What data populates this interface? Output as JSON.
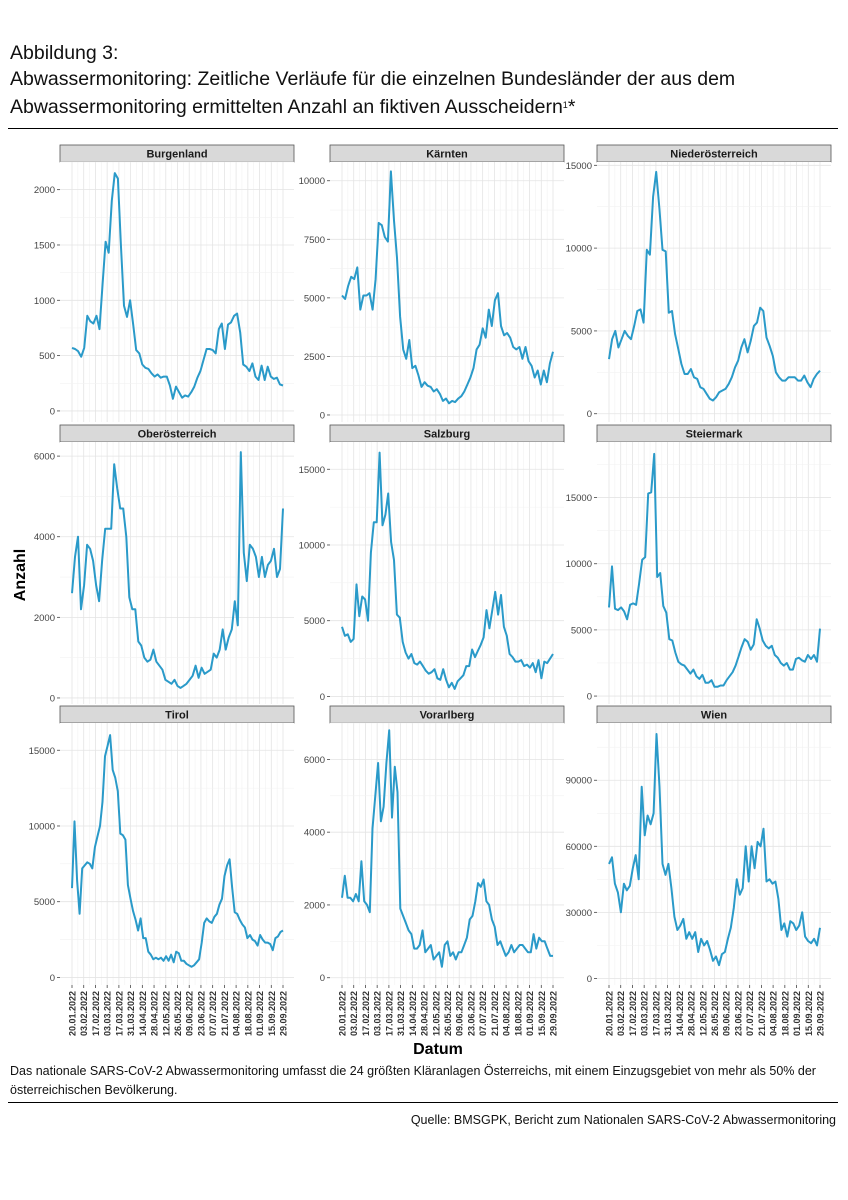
{
  "header": {
    "figure_label": "Abbildung 3:",
    "title_line1": "Abwassermonitoring: Zeitliche Verläufe für die einzelnen Bundesländer der aus dem",
    "title_line2": "Abwassermonitoring ermittelten Anzahl an fiktiven Ausscheidern",
    "title_sup": "1",
    "title_suffix": "*"
  },
  "footnote": "Das nationale SARS-CoV-2 Abwassermonitoring umfasst die 24 größten Kläranlagen Österreichs, mit einem Einzugsgebiet von mehr als 50% der österreichischen Bevölkerung.",
  "source": "Quelle: BMSGPK, Bericht zum Nationalen SARS-CoV-2 Abwassermonitoring",
  "colors": {
    "line": "#2a9ac9",
    "strip": "#d9d9d9",
    "grid_major": "#e4e4e4",
    "grid_minor": "#f2f2f2"
  },
  "chart_data": {
    "type": "line",
    "facet": "small-multiples",
    "xlabel": "Datum",
    "ylabel": "Anzahl",
    "x_tick_labels": [
      "20.01.2022",
      "03.02.2022",
      "17.02.2022",
      "03.03.2022",
      "17.03.2022",
      "31.03.2022",
      "14.04.2022",
      "28.04.2022",
      "12.05.2022",
      "26.05.2022",
      "09.06.2022",
      "23.06.2022",
      "07.07.2022",
      "21.07.2022",
      "04.08.2022",
      "18.08.2022",
      "01.09.2022",
      "15.09.2022",
      "29.09.2022"
    ],
    "x_range": [
      "20.01.2022",
      "29.09.2022"
    ],
    "grid": true,
    "panels": [
      {
        "name": "Burgenland",
        "ylim": [
          -100,
          2250
        ],
        "yticks": [
          0,
          500,
          1000,
          1500,
          2000
        ],
        "values": [
          570,
          560,
          540,
          490,
          570,
          860,
          810,
          790,
          860,
          740,
          1150,
          1530,
          1430,
          1900,
          2150,
          2100,
          1500,
          950,
          850,
          1000,
          780,
          550,
          520,
          420,
          390,
          380,
          340,
          310,
          330,
          300,
          310,
          310,
          230,
          110,
          220,
          170,
          120,
          140,
          130,
          170,
          220,
          300,
          360,
          460,
          560,
          560,
          550,
          520,
          740,
          790,
          560,
          780,
          800,
          860,
          880,
          710,
          420,
          400,
          360,
          430,
          310,
          280,
          410,
          280,
          400,
          310,
          290,
          300,
          240,
          230
        ]
      },
      {
        "name": "Kärnten",
        "ylim": [
          -300,
          10800
        ],
        "yticks": [
          0,
          2500,
          5000,
          7500,
          10000
        ],
        "values": [
          5100,
          4950,
          5500,
          5900,
          5800,
          6300,
          4500,
          5100,
          5100,
          5200,
          4500,
          5800,
          8200,
          8100,
          7600,
          7400,
          10400,
          8300,
          6700,
          4200,
          2800,
          2400,
          3200,
          2000,
          2100,
          1700,
          1200,
          1400,
          1250,
          1200,
          1000,
          1100,
          900,
          600,
          700,
          500,
          600,
          550,
          700,
          800,
          1000,
          1300,
          1600,
          2000,
          2800,
          3000,
          3700,
          3300,
          4500,
          3800,
          4900,
          5200,
          3800,
          3400,
          3500,
          3300,
          2900,
          2800,
          2900,
          2400,
          2900,
          2300,
          2100,
          1600,
          1900,
          1300,
          1900,
          1400,
          2200,
          2700
        ]
      },
      {
        "name": "Niederösterreich",
        "ylim": [
          -500,
          15200
        ],
        "yticks": [
          0,
          5000,
          10000,
          15000
        ],
        "values": [
          3300,
          4500,
          5000,
          4000,
          4500,
          5000,
          4700,
          4500,
          5300,
          6200,
          6300,
          5500,
          9900,
          9600,
          13100,
          14600,
          12400,
          9900,
          9800,
          6100,
          6200,
          4800,
          3900,
          3000,
          2400,
          2400,
          2700,
          2200,
          2100,
          1600,
          1500,
          1200,
          900,
          800,
          1000,
          1300,
          1400,
          1500,
          1800,
          2200,
          2800,
          3200,
          4000,
          4500,
          3700,
          4400,
          5300,
          5500,
          6400,
          6200,
          4600,
          4100,
          3500,
          2500,
          2200,
          2000,
          2000,
          2200,
          2200,
          2200,
          2000,
          2000,
          2300,
          1900,
          1600,
          2100,
          2400,
          2600
        ]
      },
      {
        "name": "Oberösterreich",
        "ylim": [
          -150,
          6350
        ],
        "yticks": [
          0,
          2000,
          4000,
          6000
        ],
        "values": [
          2600,
          3500,
          4000,
          2200,
          2800,
          3800,
          3700,
          3400,
          2800,
          2400,
          3400,
          4200,
          4200,
          4200,
          5800,
          5200,
          4700,
          4700,
          4000,
          2500,
          2200,
          2200,
          1400,
          1300,
          1000,
          900,
          950,
          1200,
          900,
          800,
          700,
          450,
          400,
          350,
          450,
          300,
          250,
          300,
          350,
          450,
          550,
          800,
          500,
          750,
          600,
          650,
          700,
          1100,
          1000,
          1200,
          1700,
          1200,
          1500,
          1700,
          2400,
          1800,
          6100,
          3600,
          2900,
          3800,
          3700,
          3500,
          3000,
          3500,
          3000,
          3300,
          3400,
          3700,
          3000,
          3200,
          4700
        ]
      },
      {
        "name": "Salzburg",
        "ylim": [
          -500,
          16800
        ],
        "yticks": [
          0,
          5000,
          10000,
          15000
        ],
        "values": [
          4600,
          4000,
          4100,
          3600,
          3800,
          7400,
          5300,
          6600,
          6400,
          5000,
          9500,
          11500,
          11500,
          16100,
          11300,
          12000,
          13400,
          10200,
          9000,
          5400,
          5200,
          3600,
          2900,
          2500,
          2800,
          2200,
          2100,
          2300,
          2000,
          1700,
          1500,
          1600,
          1800,
          1200,
          1100,
          1800,
          1100,
          600,
          900,
          500,
          1000,
          1200,
          1400,
          2000,
          2000,
          3100,
          2600,
          3000,
          3400,
          3900,
          5700,
          4500,
          5700,
          6900,
          5400,
          6700,
          4600,
          4000,
          2800,
          2600,
          2300,
          2300,
          2400,
          2000,
          2100,
          1900,
          2200,
          1600,
          2400,
          1200,
          2300,
          2200,
          2500,
          2800
        ]
      },
      {
        "name": "Steiermark",
        "ylim": [
          -600,
          19200
        ],
        "yticks": [
          0,
          5000,
          10000,
          15000
        ],
        "values": [
          6700,
          9800,
          6600,
          6500,
          6700,
          6400,
          5800,
          6900,
          7000,
          6900,
          8500,
          10300,
          10500,
          15300,
          15400,
          18300,
          9000,
          9300,
          6800,
          6300,
          4300,
          4200,
          3300,
          2600,
          2400,
          2300,
          2000,
          1700,
          2000,
          1500,
          1300,
          1600,
          1000,
          1000,
          1200,
          700,
          700,
          800,
          800,
          1200,
          1500,
          1800,
          2300,
          3000,
          3700,
          4300,
          4100,
          3500,
          3900,
          5800,
          5100,
          4200,
          3800,
          3600,
          3800,
          3100,
          2900,
          2500,
          2300,
          2500,
          2000,
          2000,
          2800,
          2900,
          2700,
          2600,
          3100,
          2800,
          3100,
          2600,
          5100
        ]
      },
      {
        "name": "Tirol",
        "ylim": [
          -500,
          16800
        ],
        "yticks": [
          0,
          5000,
          10000,
          15000
        ],
        "values": [
          5900,
          10300,
          6400,
          4200,
          7200,
          7400,
          7600,
          7500,
          7200,
          8600,
          9300,
          10000,
          11600,
          14600,
          15300,
          16000,
          13700,
          13200,
          12300,
          9500,
          9400,
          9100,
          6100,
          5200,
          4400,
          3800,
          3100,
          3900,
          2600,
          2600,
          1700,
          1500,
          1200,
          1300,
          1200,
          1300,
          1100,
          1400,
          1100,
          1500,
          1000,
          1700,
          1600,
          1100,
          1100,
          900,
          800,
          700,
          800,
          1000,
          1200,
          2300,
          3600,
          3900,
          3700,
          3600,
          4000,
          4200,
          4800,
          5200,
          6700,
          7400,
          7800,
          5900,
          4300,
          4200,
          3800,
          3500,
          3300,
          2600,
          2800,
          2500,
          2400,
          2100,
          2800,
          2500,
          2300,
          2300,
          2200,
          1800,
          2600,
          2700,
          3000,
          3100
        ]
      },
      {
        "name": "Vorarlberg",
        "ylim": [
          -200,
          7000
        ],
        "yticks": [
          0,
          2000,
          4000,
          6000
        ],
        "values": [
          2200,
          2800,
          2200,
          2200,
          2100,
          2300,
          2100,
          3200,
          2100,
          2000,
          1800,
          4100,
          5000,
          5900,
          4300,
          4700,
          5900,
          6800,
          4400,
          5800,
          5100,
          1900,
          1700,
          1500,
          1300,
          1200,
          800,
          800,
          900,
          1300,
          700,
          800,
          900,
          500,
          600,
          700,
          300,
          900,
          1000,
          600,
          700,
          500,
          700,
          700,
          900,
          1100,
          1600,
          1700,
          2100,
          2600,
          2500,
          2700,
          2100,
          2000,
          1600,
          1400,
          900,
          1000,
          800,
          600,
          700,
          900,
          700,
          800,
          900,
          900,
          800,
          700,
          700,
          1200,
          800,
          1100,
          1000,
          1000,
          800,
          600,
          600
        ]
      },
      {
        "name": "Wien",
        "ylim": [
          -3000,
          116000
        ],
        "yticks": [
          0,
          30000,
          60000,
          90000
        ],
        "values": [
          52000,
          55000,
          43000,
          39000,
          30000,
          43000,
          40000,
          42000,
          50000,
          56000,
          45000,
          87000,
          65000,
          74000,
          70000,
          75000,
          111000,
          87000,
          52000,
          47000,
          52000,
          41000,
          28000,
          22000,
          24000,
          27000,
          18000,
          21000,
          18000,
          21000,
          12000,
          18000,
          15000,
          17000,
          13000,
          8000,
          10000,
          6000,
          11000,
          12000,
          18000,
          23000,
          32000,
          45000,
          38000,
          41000,
          60000,
          44000,
          60000,
          50000,
          62000,
          60000,
          68000,
          44000,
          45000,
          43000,
          44000,
          36000,
          22000,
          25000,
          19000,
          26000,
          25000,
          22000,
          24000,
          30000,
          19000,
          17000,
          16000,
          18000,
          15000,
          23000
        ]
      }
    ]
  }
}
